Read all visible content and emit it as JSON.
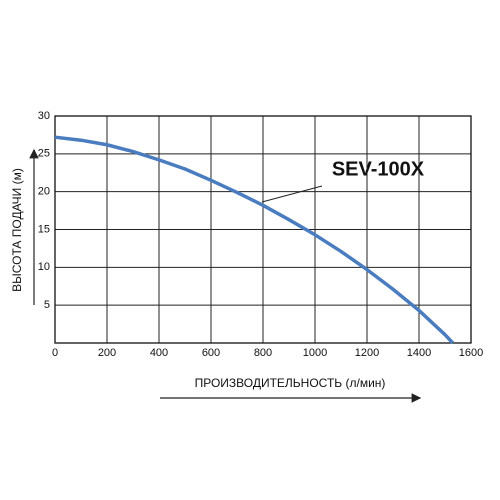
{
  "chart_data": {
    "type": "line",
    "y_label": "ВЫСОТА ПОДАЧИ (м)",
    "x_label": "ПРОИЗВОДИТЕЛЬНОСТЬ (л/мин)",
    "annotation": "SEV-100X",
    "annotation_color": "#1aa6e0",
    "grid": true,
    "xlim": [
      0,
      1600
    ],
    "xticks": [
      0,
      200,
      400,
      600,
      800,
      1000,
      1200,
      1400,
      1600
    ],
    "ylim": [
      0,
      30
    ],
    "yticks": [
      5,
      10,
      15,
      20,
      25,
      30
    ],
    "x": [
      0,
      100,
      200,
      300,
      400,
      500,
      600,
      700,
      800,
      900,
      1000,
      1100,
      1200,
      1300,
      1400,
      1500,
      1530
    ],
    "series": [
      {
        "color": "#4a7cc0",
        "values": [
          27.2,
          26.8,
          26.2,
          25.3,
          24.2,
          23,
          21.5,
          19.9,
          18.2,
          16.3,
          14.3,
          12.1,
          9.7,
          7.1,
          4.3,
          1.1,
          0
        ]
      }
    ]
  }
}
